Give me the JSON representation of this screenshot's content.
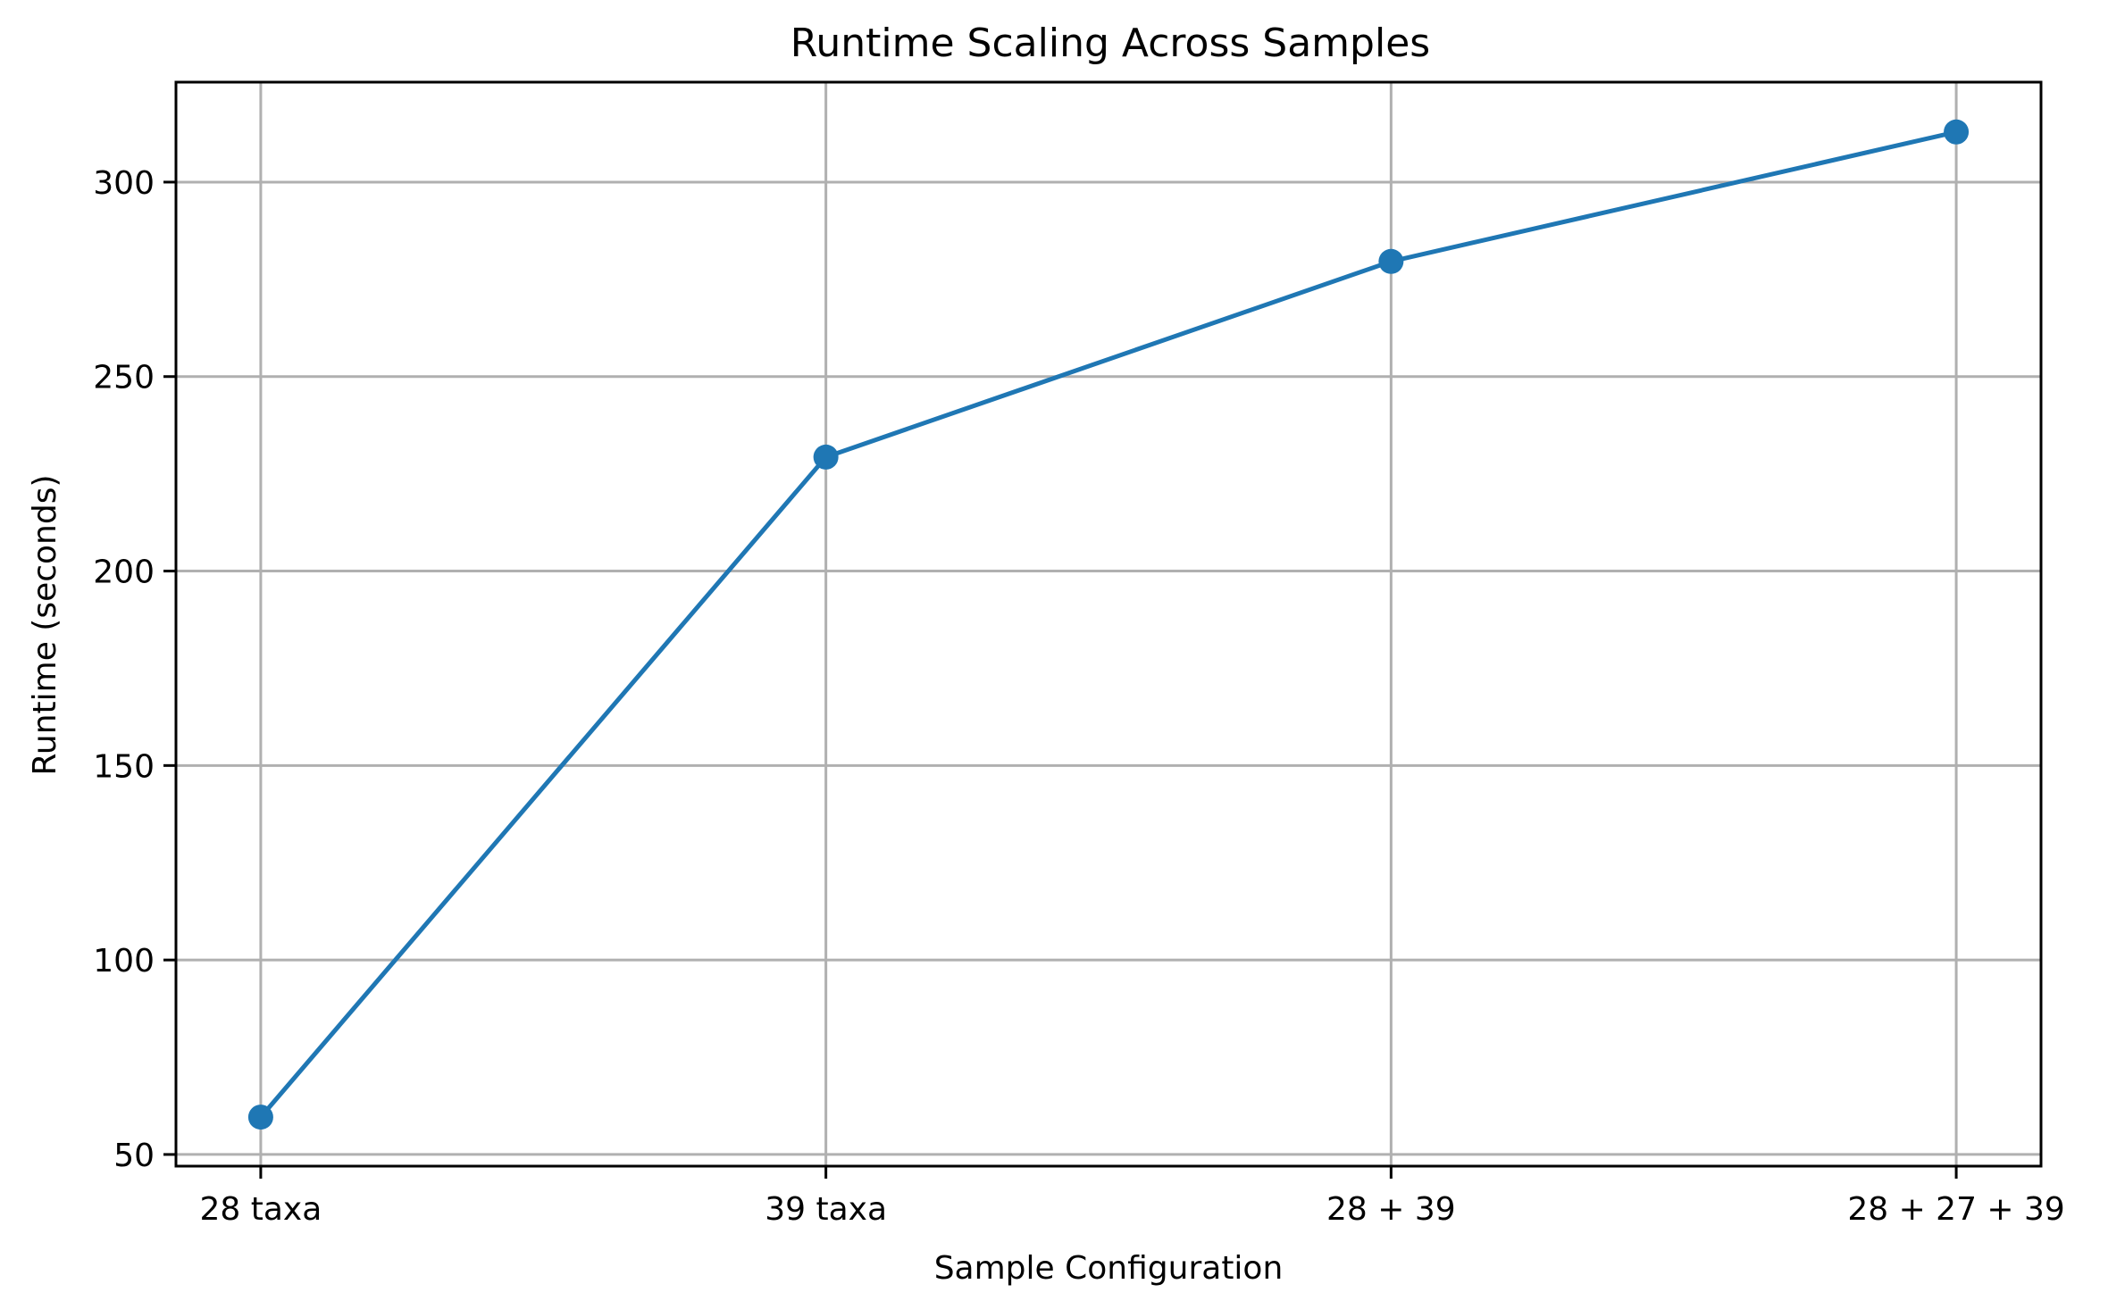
{
  "chart_data": {
    "type": "line",
    "title": "Runtime Scaling Across Samples",
    "xlabel": "Sample Configuration",
    "ylabel": "Runtime (seconds)",
    "categories": [
      "28 taxa",
      "39 taxa",
      "28 + 39",
      "28 + 27 + 39"
    ],
    "series": [
      {
        "name": "Runtime",
        "color": "#1f77b4",
        "marker": "circle",
        "values": [
          59.6,
          229.3,
          279.6,
          312.9
        ]
      }
    ],
    "yticks": [
      50,
      100,
      150,
      200,
      250,
      300
    ],
    "ylim": [
      47.0,
      325.7
    ],
    "xlim": [
      -0.15,
      3.15
    ],
    "grid": true,
    "legend": null
  },
  "colors": {
    "line": "#1f77b4",
    "grid": "#b0b0b0",
    "axis": "#000000"
  }
}
